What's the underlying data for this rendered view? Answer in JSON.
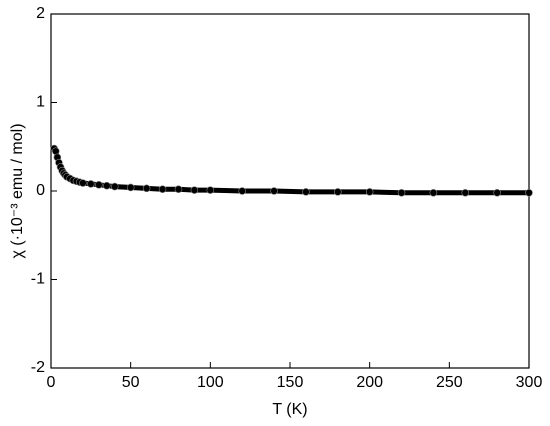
{
  "chart_data": {
    "type": "scatter",
    "xlabel": "T (K)",
    "ylabel": "χ (·10⁻³ emu / mol)",
    "x": [
      2,
      3,
      4,
      5,
      6,
      7,
      8,
      9,
      10,
      12,
      14,
      16,
      18,
      20,
      25,
      30,
      35,
      40,
      50,
      60,
      70,
      80,
      90,
      100,
      120,
      140,
      160,
      180,
      200,
      220,
      240,
      260,
      280,
      300
    ],
    "values": [
      0.48,
      0.45,
      0.38,
      0.32,
      0.27,
      0.23,
      0.2,
      0.18,
      0.16,
      0.14,
      0.12,
      0.11,
      0.1,
      0.09,
      0.08,
      0.07,
      0.06,
      0.05,
      0.04,
      0.03,
      0.02,
      0.02,
      0.01,
      0.01,
      0,
      0,
      -0.01,
      -0.01,
      -0.01,
      -0.02,
      -0.02,
      -0.02,
      -0.02,
      -0.02
    ],
    "color": "#000000",
    "connect": true,
    "xlim": [
      0,
      300
    ],
    "xticks": [
      0,
      50,
      100,
      150,
      200,
      250,
      300
    ],
    "ylim": [
      -2,
      2
    ],
    "yticks": [
      -2,
      -1,
      0,
      1,
      2
    ]
  }
}
